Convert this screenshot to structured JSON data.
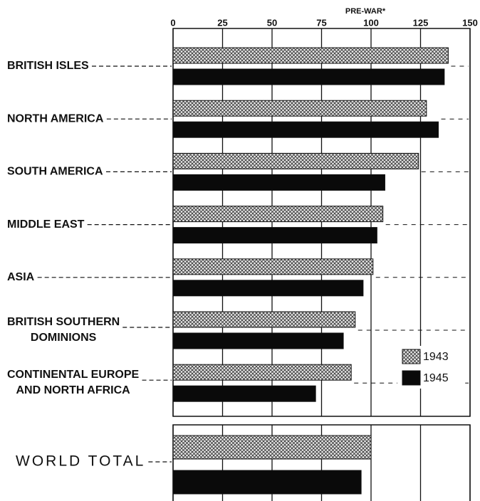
{
  "chart_data": {
    "type": "barh",
    "annotation": "PRE-WAR*",
    "categories": [
      "BRITISH ISLES",
      "NORTH AMERICA",
      "SOUTH AMERICA",
      "MIDDLE EAST",
      "ASIA",
      "BRITISH SOUTHERN\nDOMINIONS",
      "CONTINENTAL EUROPE\nAND NORTH AFRICA",
      "WORLD TOTAL"
    ],
    "series": [
      {
        "name": "1943",
        "color": "#555",
        "hatch": true,
        "values": [
          139,
          128,
          124,
          106,
          101,
          92,
          90,
          100
        ]
      },
      {
        "name": "1945",
        "color": "#0a0a0a",
        "hatch": false,
        "values": [
          137,
          134,
          107,
          103,
          96,
          86,
          72,
          95
        ]
      }
    ],
    "xlim": [
      0,
      150
    ],
    "xticks": [
      0,
      25,
      50,
      75,
      100,
      125,
      150
    ],
    "grid": true
  }
}
